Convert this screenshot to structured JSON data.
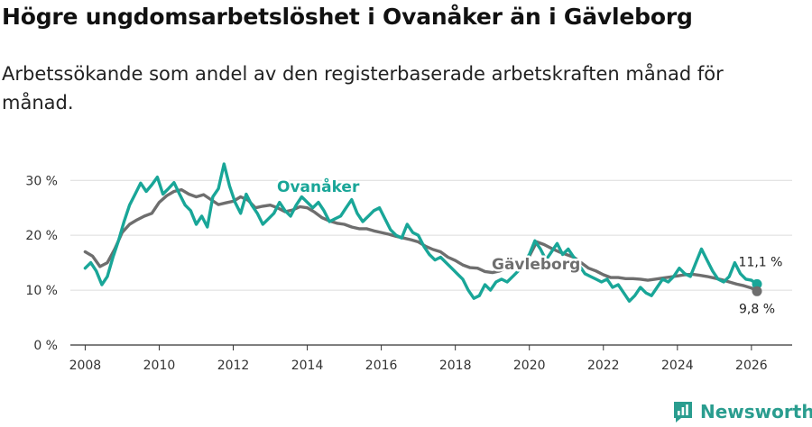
{
  "title": "Högre ungdomsarbetslöshet i Ovanåker än i Gävleborg",
  "subtitle": "Arbetssökande som andel av den registerbaserade arbetskraften månad för månad.",
  "brand": {
    "name": "Newsworthy",
    "color": "#2a9d8f"
  },
  "chart_data": {
    "type": "line",
    "ylim": [
      0,
      33
    ],
    "xlim": [
      2007.6,
      2027.1
    ],
    "yticks": [
      0,
      10,
      20,
      30
    ],
    "ytick_labels": [
      "0 %",
      "10 %",
      "20 %",
      "30 %"
    ],
    "xticks": [
      2008,
      2010,
      2012,
      2014,
      2016,
      2018,
      2020,
      2022,
      2024,
      2026
    ],
    "xtick_labels": [
      "2008",
      "2010",
      "2012",
      "2014",
      "2016",
      "2018",
      "2020",
      "2022",
      "2024",
      "2026"
    ],
    "grid": true,
    "series": [
      {
        "name": "Gävleborg",
        "color": "#6e6e6e",
        "label": "Gävleborg",
        "end_label": "9,8 %",
        "points": [
          [
            2008.0,
            17.0
          ],
          [
            2008.2,
            16.2
          ],
          [
            2008.4,
            14.3
          ],
          [
            2008.6,
            15.0
          ],
          [
            2008.8,
            17.5
          ],
          [
            2009.0,
            20.5
          ],
          [
            2009.2,
            22.0
          ],
          [
            2009.4,
            22.8
          ],
          [
            2009.6,
            23.5
          ],
          [
            2009.8,
            24.0
          ],
          [
            2010.0,
            26.0
          ],
          [
            2010.2,
            27.2
          ],
          [
            2010.4,
            28.0
          ],
          [
            2010.6,
            28.3
          ],
          [
            2010.8,
            27.5
          ],
          [
            2011.0,
            27.0
          ],
          [
            2011.2,
            27.4
          ],
          [
            2011.4,
            26.5
          ],
          [
            2011.6,
            25.6
          ],
          [
            2011.8,
            25.9
          ],
          [
            2012.0,
            26.2
          ],
          [
            2012.2,
            27.0
          ],
          [
            2012.4,
            26.4
          ],
          [
            2012.6,
            25.0
          ],
          [
            2012.8,
            25.3
          ],
          [
            2013.0,
            25.5
          ],
          [
            2013.2,
            25.0
          ],
          [
            2013.4,
            24.3
          ],
          [
            2013.6,
            24.6
          ],
          [
            2013.8,
            25.2
          ],
          [
            2014.0,
            25.0
          ],
          [
            2014.2,
            24.2
          ],
          [
            2014.4,
            23.2
          ],
          [
            2014.6,
            22.6
          ],
          [
            2014.8,
            22.2
          ],
          [
            2015.0,
            22.0
          ],
          [
            2015.2,
            21.5
          ],
          [
            2015.4,
            21.2
          ],
          [
            2015.6,
            21.2
          ],
          [
            2015.8,
            20.8
          ],
          [
            2016.0,
            20.5
          ],
          [
            2016.2,
            20.2
          ],
          [
            2016.4,
            19.8
          ],
          [
            2016.6,
            19.5
          ],
          [
            2016.8,
            19.2
          ],
          [
            2017.0,
            18.8
          ],
          [
            2017.2,
            18.0
          ],
          [
            2017.4,
            17.4
          ],
          [
            2017.6,
            17.0
          ],
          [
            2017.8,
            16.0
          ],
          [
            2018.0,
            15.4
          ],
          [
            2018.2,
            14.6
          ],
          [
            2018.4,
            14.1
          ],
          [
            2018.6,
            14.0
          ],
          [
            2018.8,
            13.4
          ],
          [
            2019.0,
            13.2
          ],
          [
            2019.2,
            13.5
          ],
          [
            2019.4,
            14.2
          ],
          [
            2019.6,
            14.6
          ],
          [
            2019.8,
            15.0
          ],
          [
            2020.0,
            16.2
          ],
          [
            2020.2,
            18.8
          ],
          [
            2020.4,
            18.3
          ],
          [
            2020.6,
            17.6
          ],
          [
            2020.8,
            17.0
          ],
          [
            2021.0,
            16.5
          ],
          [
            2021.2,
            16.0
          ],
          [
            2021.4,
            15.0
          ],
          [
            2021.6,
            14.0
          ],
          [
            2021.8,
            13.5
          ],
          [
            2022.0,
            12.8
          ],
          [
            2022.2,
            12.3
          ],
          [
            2022.4,
            12.3
          ],
          [
            2022.6,
            12.1
          ],
          [
            2022.8,
            12.1
          ],
          [
            2023.0,
            12.0
          ],
          [
            2023.2,
            11.8
          ],
          [
            2023.4,
            12.0
          ],
          [
            2023.6,
            12.2
          ],
          [
            2023.8,
            12.4
          ],
          [
            2024.0,
            12.6
          ],
          [
            2024.2,
            12.8
          ],
          [
            2024.4,
            12.9
          ],
          [
            2024.6,
            12.7
          ],
          [
            2024.8,
            12.5
          ],
          [
            2025.0,
            12.2
          ],
          [
            2025.2,
            11.9
          ],
          [
            2025.4,
            11.5
          ],
          [
            2025.6,
            11.1
          ],
          [
            2025.8,
            10.8
          ],
          [
            2026.0,
            10.4
          ],
          [
            2026.15,
            9.8
          ]
        ]
      },
      {
        "name": "Ovanåker",
        "color": "#19a698",
        "label": "Ovanåker",
        "end_label": "11,1 %",
        "points": [
          [
            2008.0,
            14.0
          ],
          [
            2008.15,
            15.0
          ],
          [
            2008.3,
            13.5
          ],
          [
            2008.45,
            11.0
          ],
          [
            2008.6,
            12.5
          ],
          [
            2008.75,
            16.0
          ],
          [
            2008.9,
            19.0
          ],
          [
            2009.05,
            22.5
          ],
          [
            2009.2,
            25.5
          ],
          [
            2009.35,
            27.5
          ],
          [
            2009.5,
            29.5
          ],
          [
            2009.65,
            28.0
          ],
          [
            2009.8,
            29.2
          ],
          [
            2009.95,
            30.6
          ],
          [
            2010.1,
            27.5
          ],
          [
            2010.25,
            28.5
          ],
          [
            2010.4,
            29.6
          ],
          [
            2010.55,
            27.5
          ],
          [
            2010.7,
            25.5
          ],
          [
            2010.85,
            24.5
          ],
          [
            2011.0,
            22.0
          ],
          [
            2011.15,
            23.5
          ],
          [
            2011.3,
            21.5
          ],
          [
            2011.45,
            27.0
          ],
          [
            2011.6,
            28.5
          ],
          [
            2011.75,
            33.0
          ],
          [
            2011.9,
            29.0
          ],
          [
            2012.05,
            26.0
          ],
          [
            2012.2,
            24.0
          ],
          [
            2012.35,
            27.5
          ],
          [
            2012.5,
            25.5
          ],
          [
            2012.65,
            24.0
          ],
          [
            2012.8,
            22.0
          ],
          [
            2012.95,
            23.0
          ],
          [
            2013.1,
            24.0
          ],
          [
            2013.25,
            26.0
          ],
          [
            2013.4,
            24.5
          ],
          [
            2013.55,
            23.5
          ],
          [
            2013.7,
            25.5
          ],
          [
            2013.85,
            27.0
          ],
          [
            2014.0,
            26.0
          ],
          [
            2014.15,
            25.0
          ],
          [
            2014.3,
            26.0
          ],
          [
            2014.45,
            24.5
          ],
          [
            2014.6,
            22.5
          ],
          [
            2014.75,
            23.0
          ],
          [
            2014.9,
            23.5
          ],
          [
            2015.05,
            25.0
          ],
          [
            2015.2,
            26.5
          ],
          [
            2015.35,
            24.0
          ],
          [
            2015.5,
            22.5
          ],
          [
            2015.65,
            23.5
          ],
          [
            2015.8,
            24.5
          ],
          [
            2015.95,
            25.0
          ],
          [
            2016.1,
            23.0
          ],
          [
            2016.25,
            21.0
          ],
          [
            2016.4,
            20.0
          ],
          [
            2016.55,
            19.5
          ],
          [
            2016.7,
            22.0
          ],
          [
            2016.85,
            20.5
          ],
          [
            2017.0,
            20.0
          ],
          [
            2017.15,
            18.0
          ],
          [
            2017.3,
            16.5
          ],
          [
            2017.45,
            15.5
          ],
          [
            2017.6,
            16.0
          ],
          [
            2017.75,
            15.0
          ],
          [
            2017.9,
            14.0
          ],
          [
            2018.05,
            13.0
          ],
          [
            2018.2,
            12.0
          ],
          [
            2018.35,
            10.0
          ],
          [
            2018.5,
            8.5
          ],
          [
            2018.65,
            9.0
          ],
          [
            2018.8,
            11.0
          ],
          [
            2018.95,
            10.0
          ],
          [
            2019.1,
            11.5
          ],
          [
            2019.25,
            12.0
          ],
          [
            2019.4,
            11.5
          ],
          [
            2019.55,
            12.5
          ],
          [
            2019.7,
            13.5
          ],
          [
            2019.85,
            15.0
          ],
          [
            2020.0,
            16.5
          ],
          [
            2020.15,
            19.0
          ],
          [
            2020.3,
            17.5
          ],
          [
            2020.45,
            15.5
          ],
          [
            2020.6,
            17.0
          ],
          [
            2020.75,
            18.5
          ],
          [
            2020.9,
            16.5
          ],
          [
            2021.05,
            17.5
          ],
          [
            2021.2,
            16.0
          ],
          [
            2021.35,
            14.5
          ],
          [
            2021.5,
            13.0
          ],
          [
            2021.65,
            12.5
          ],
          [
            2021.8,
            12.0
          ],
          [
            2021.95,
            11.5
          ],
          [
            2022.1,
            12.0
          ],
          [
            2022.25,
            10.5
          ],
          [
            2022.4,
            11.0
          ],
          [
            2022.55,
            9.5
          ],
          [
            2022.7,
            8.0
          ],
          [
            2022.85,
            9.0
          ],
          [
            2023.0,
            10.5
          ],
          [
            2023.15,
            9.5
          ],
          [
            2023.3,
            9.0
          ],
          [
            2023.45,
            10.5
          ],
          [
            2023.6,
            12.0
          ],
          [
            2023.75,
            11.5
          ],
          [
            2023.9,
            12.5
          ],
          [
            2024.05,
            14.0
          ],
          [
            2024.2,
            13.0
          ],
          [
            2024.35,
            12.5
          ],
          [
            2024.5,
            15.0
          ],
          [
            2024.65,
            17.5
          ],
          [
            2024.8,
            15.5
          ],
          [
            2024.95,
            13.5
          ],
          [
            2025.1,
            12.0
          ],
          [
            2025.25,
            11.5
          ],
          [
            2025.4,
            12.5
          ],
          [
            2025.55,
            15.0
          ],
          [
            2025.7,
            13.0
          ],
          [
            2025.85,
            12.0
          ],
          [
            2026.0,
            11.8
          ],
          [
            2026.15,
            11.1
          ]
        ]
      }
    ]
  }
}
